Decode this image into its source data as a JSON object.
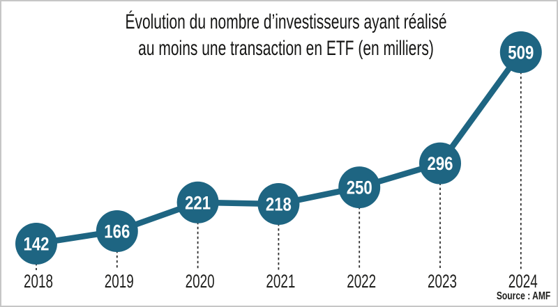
{
  "title": {
    "line1": "Évolution du nombre d’investisseurs ayant réalisé",
    "line2": "au moins une transaction en ETF (en milliers)"
  },
  "source_label": "Source : AMF",
  "colors": {
    "accent": "#1e6582",
    "text": "#1d1d1b",
    "value_text": "#ffffff",
    "leader_dash": "#2e2e2e",
    "frame_border": "#c6c6c6",
    "background": "#ffffff"
  },
  "chart_data": {
    "type": "line",
    "title": "Évolution du nombre d’investisseurs ayant réalisé au moins une transaction en ETF (en milliers)",
    "unit": "milliers",
    "categories": [
      "2018",
      "2019",
      "2020",
      "2021",
      "2022",
      "2023",
      "2024"
    ],
    "values": [
      142,
      166,
      221,
      218,
      250,
      296,
      509
    ],
    "ylim": [
      100,
      560
    ],
    "grid": false,
    "legend": false,
    "marker_style": "filled-circle-with-value-label",
    "leader_lines": "dashed-vertical-to-year-label",
    "source": "Source : AMF"
  }
}
